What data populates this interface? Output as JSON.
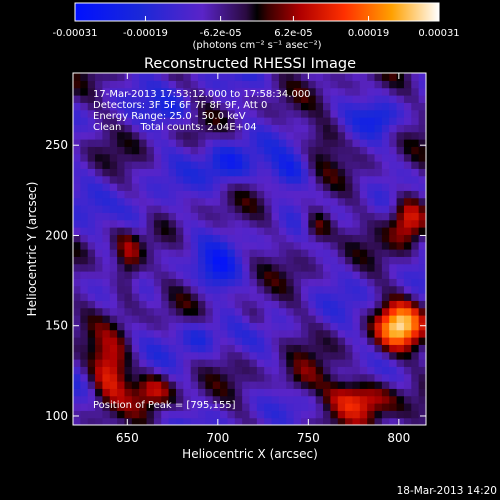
{
  "chart_data": {
    "type": "heatmap",
    "title": "Reconstructed RHESSI Image",
    "xlabel": "Heliocentric X (arcsec)",
    "ylabel": "Heliocentric Y (arcsec)",
    "xlim": [
      620,
      815
    ],
    "ylim": [
      95,
      290
    ],
    "x_ticks": [
      650,
      700,
      750,
      800
    ],
    "y_ticks": [
      100,
      150,
      200,
      250
    ],
    "colorbar": {
      "ticks": [
        "-0.00031",
        "-0.00019",
        "-6.2e-05",
        "6.2e-05",
        "0.00019",
        "0.00031"
      ],
      "tick_values": [
        -0.00031,
        -0.00019,
        -6.2e-05,
        6.2e-05,
        0.00019,
        0.00031
      ],
      "range": [
        -0.00031,
        0.00031
      ],
      "unit_label": "(photons cm⁻² s⁻¹ asec⁻²)"
    },
    "annotations": [
      "17-Mar-2013 17:53:12.000 to 17:58:34.000",
      "Detectors: 3F 5F 6F 7F 8F 9F, Att 0",
      "Energy Range: 25.0 - 50.0 keV",
      "Clean      Total counts: 2.04E+04"
    ],
    "peak_text": "Position of Peak = [795,155]",
    "peak_position": [
      795,
      155
    ],
    "sources": [
      {
        "x": 800,
        "y": 150,
        "amp": 0.00031,
        "sx": 9,
        "sy": 9
      },
      {
        "x": 805,
        "y": 210,
        "amp": 0.00024,
        "sx": 7,
        "sy": 10
      },
      {
        "x": 755,
        "y": 205,
        "amp": 0.00017,
        "sx": 6,
        "sy": 7
      },
      {
        "x": 780,
        "y": 110,
        "amp": 0.00023,
        "sx": 14,
        "sy": 8
      },
      {
        "x": 640,
        "y": 125,
        "amp": 0.0002,
        "sx": 8,
        "sy": 12
      },
      {
        "x": 665,
        "y": 115,
        "amp": 0.00016,
        "sx": 8,
        "sy": 7
      },
      {
        "x": 650,
        "y": 185,
        "amp": 0.00017,
        "sx": 6,
        "sy": 14
      },
      {
        "x": 745,
        "y": 120,
        "amp": 0.0001,
        "sx": 8,
        "sy": 7
      },
      {
        "x": 720,
        "y": 155,
        "amp": 7e-05,
        "sx": 6,
        "sy": 6
      },
      {
        "x": 760,
        "y": 255,
        "amp": 8e-05,
        "sx": 7,
        "sy": 7
      }
    ],
    "negatives": [
      {
        "x": 705,
        "y": 240,
        "amp": 0.00016,
        "sx": 9,
        "sy": 9
      },
      {
        "x": 700,
        "y": 180,
        "amp": 0.00014,
        "sx": 8,
        "sy": 9
      },
      {
        "x": 655,
        "y": 210,
        "amp": 0.00012,
        "sx": 8,
        "sy": 8
      },
      {
        "x": 740,
        "y": 235,
        "amp": 0.00012,
        "sx": 7,
        "sy": 7
      },
      {
        "x": 690,
        "y": 145,
        "amp": 0.00011,
        "sx": 7,
        "sy": 7
      },
      {
        "x": 790,
        "y": 265,
        "amp": 0.0001,
        "sx": 7,
        "sy": 6
      },
      {
        "x": 675,
        "y": 270,
        "amp": 0.0001,
        "sx": 8,
        "sy": 6
      }
    ]
  },
  "footer": {
    "timestamp": "18-Mar-2013 14:20"
  }
}
